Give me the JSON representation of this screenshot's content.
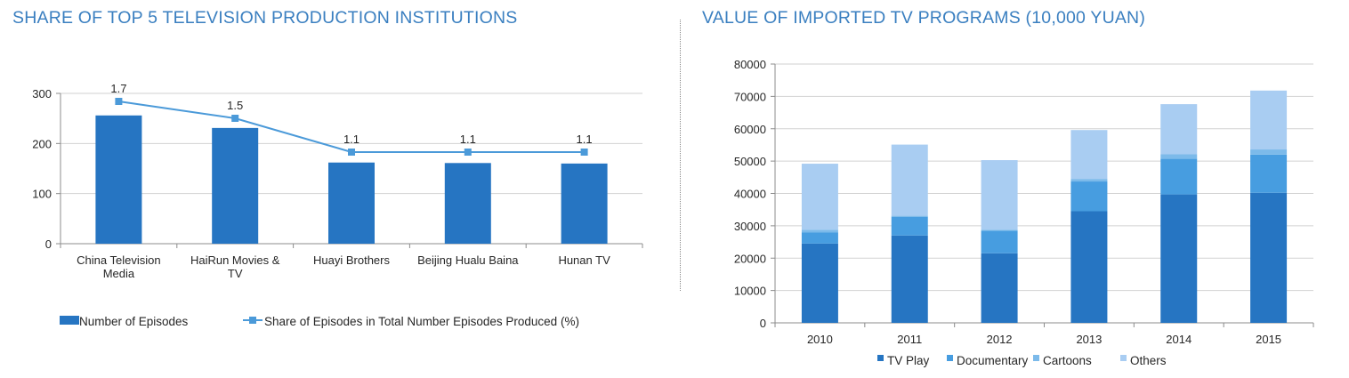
{
  "left_title": "SHARE OF TOP 5 TELEVISION PRODUCTION INSTITUTIONS",
  "right_title": "VALUE OF IMPORTED TV PROGRAMS (10,000 YUAN)",
  "colors": {
    "title": "#3a7fc0",
    "bar": "#2675c2",
    "line": "#4b9ad9",
    "tv_play": "#2675c2",
    "documentary": "#479de0",
    "cartoons": "#7cbaea",
    "others": "#a9cdf2"
  },
  "chart_data": [
    {
      "type": "bar",
      "title": "SHARE OF TOP 5 TELEVISION PRODUCTION INSTITUTIONS",
      "categories": [
        [
          "China Television",
          "Media"
        ],
        [
          "HaiRun Movies &",
          "TV"
        ],
        [
          "Huayi Brothers"
        ],
        [
          "Beijing Hualu Baina"
        ],
        [
          "Hunan TV"
        ]
      ],
      "ylim": [
        0,
        300
      ],
      "yticks": [
        0,
        100,
        200,
        300
      ],
      "grid": true,
      "legend": "bottom",
      "series": [
        {
          "name": "Number of Episodes",
          "type": "bar",
          "values": [
            256,
            231,
            162,
            161,
            160
          ]
        },
        {
          "name": "Share of Episodes in Total Number Episodes Produced (%)",
          "type": "line",
          "values": [
            1.7,
            1.5,
            1.1,
            1.1,
            1.1
          ],
          "labels": [
            "1.7",
            "1.5",
            "1.1",
            "1.1",
            "1.1"
          ]
        }
      ]
    },
    {
      "type": "bar",
      "stacked": true,
      "title": "VALUE OF IMPORTED TV PROGRAMS (10,000 YUAN)",
      "categories": [
        "2010",
        "2011",
        "2012",
        "2013",
        "2014",
        "2015"
      ],
      "ylim": [
        0,
        80000
      ],
      "yticks": [
        0,
        10000,
        20000,
        30000,
        40000,
        50000,
        60000,
        70000,
        80000
      ],
      "grid": true,
      "legend": "bottom",
      "series": [
        {
          "name": "TV Play",
          "values": [
            24500,
            27000,
            21500,
            34500,
            39700,
            40200
          ]
        },
        {
          "name": "Documentary",
          "values": [
            3500,
            5800,
            7000,
            9200,
            11000,
            11800
          ]
        },
        {
          "name": "Cartoons",
          "values": [
            800,
            300,
            300,
            800,
            1400,
            1600
          ]
        },
        {
          "name": "Others",
          "values": [
            20400,
            22000,
            21500,
            15100,
            15500,
            18200
          ]
        }
      ]
    }
  ]
}
